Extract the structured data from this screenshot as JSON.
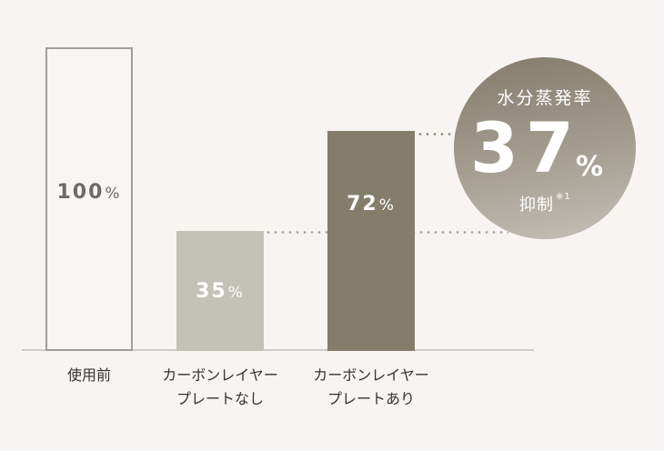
{
  "chart_data": {
    "type": "bar",
    "title": "",
    "categories": [
      "使用前",
      "カーボンレイヤープレートなし",
      "カーボンレイヤープレートあり"
    ],
    "category_lines": [
      [
        "使用前"
      ],
      [
        "カーボンレイヤー",
        "プレートなし"
      ],
      [
        "カーボンレイヤー",
        "プレートあり"
      ]
    ],
    "values": [
      100,
      35,
      72
    ],
    "value_labels": [
      "100",
      "35",
      "72"
    ],
    "unit": "%",
    "xlabel": "",
    "ylabel": "",
    "ylim": [
      0,
      100
    ],
    "grid": false,
    "colors": [
      "#f8f6f4",
      "#c4c1b6",
      "#847d6c"
    ],
    "annotation": {
      "title": "水分蒸発率",
      "value": "37",
      "unit": "%",
      "subtitle": "抑制",
      "note": "※1"
    }
  }
}
